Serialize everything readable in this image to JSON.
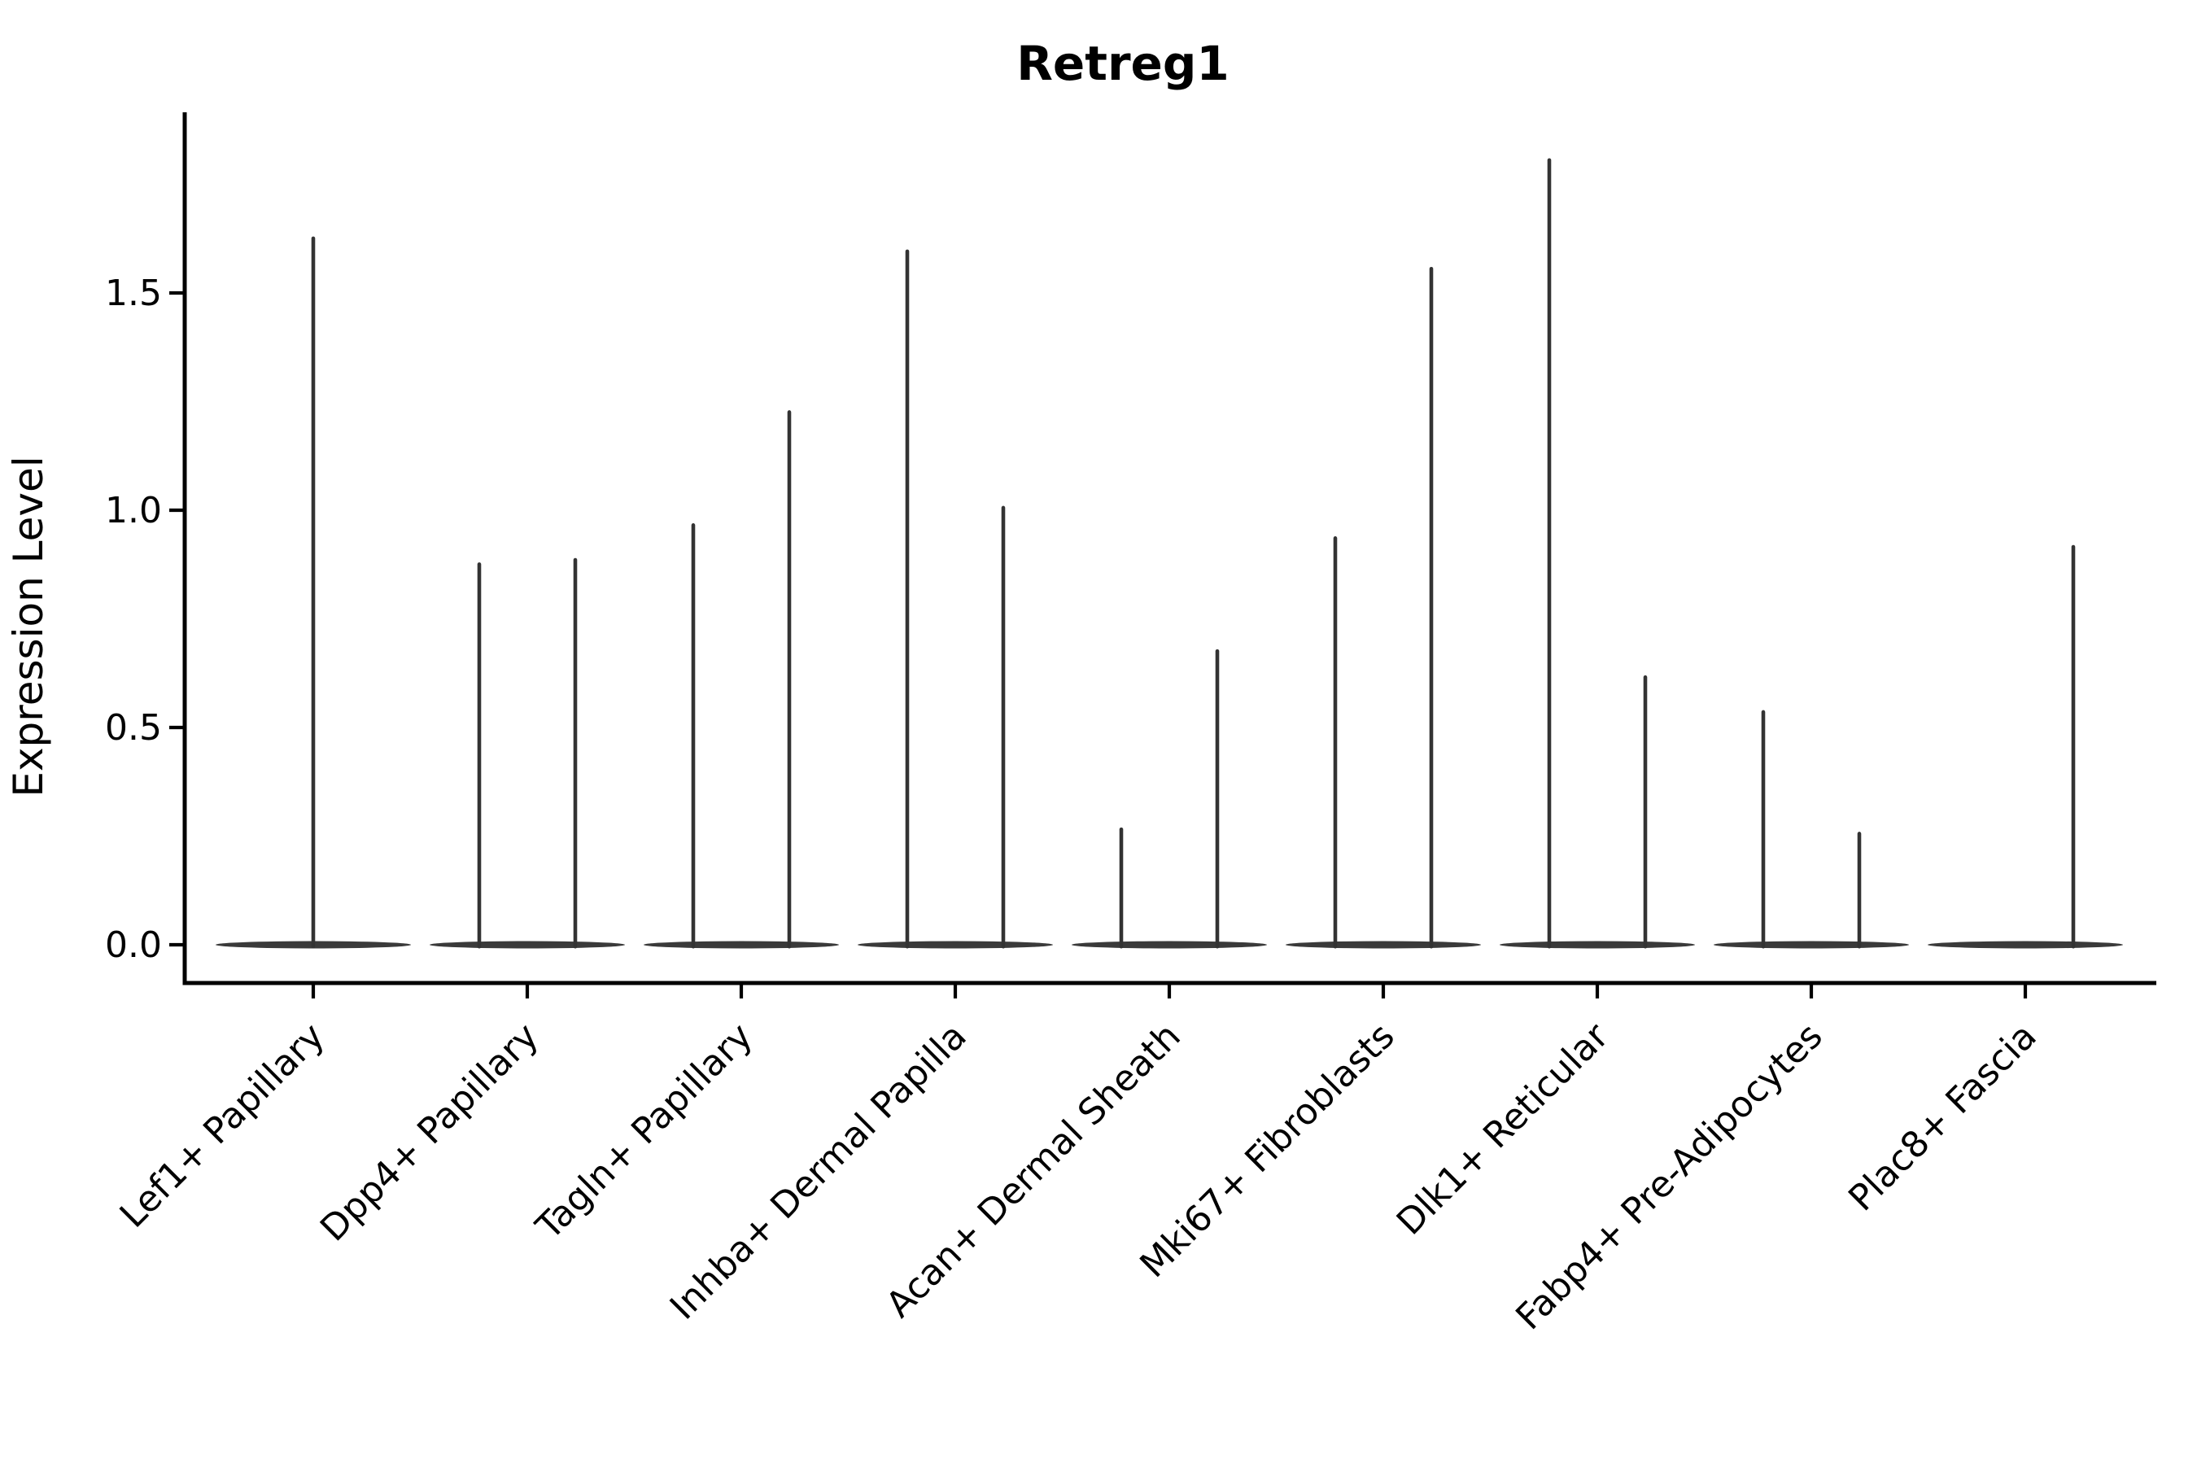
{
  "figure": {
    "background": "#ffffff"
  },
  "chart_data": {
    "type": "violin",
    "title": "Retreg1",
    "ylabel": "Expression Level",
    "xlabel": "",
    "grid": false,
    "legend": "none",
    "yticks": [
      "0.0",
      "0.5",
      "1.0",
      "1.5"
    ],
    "ytick_values": [
      0.0,
      0.5,
      1.0,
      1.5
    ],
    "ylim": [
      -0.09,
      1.92
    ],
    "baseline_value": 0.0,
    "categories": [
      "Lef1+ Papillary",
      "Dpp4+ Papillary",
      "Tagln+ Papillary",
      "Inhba+ Dermal Papilla",
      "Acan+ Dermal Sheath",
      "Mki67+ Fibroblasts",
      "Dlk1+ Reticular",
      "Fabp4+ Pre-Adipocytes",
      "Plac8+ Fascia"
    ],
    "violins": [
      {
        "category": "Lef1+ Papillary",
        "peaks": [
          {
            "pos": "center",
            "peak": 1.63
          }
        ]
      },
      {
        "category": "Dpp4+ Papillary",
        "peaks": [
          {
            "pos": "left",
            "peak": 0.88
          },
          {
            "pos": "right",
            "peak": 0.89
          }
        ]
      },
      {
        "category": "Tagln+ Papillary",
        "peaks": [
          {
            "pos": "left",
            "peak": 0.97
          },
          {
            "pos": "right",
            "peak": 1.23
          }
        ]
      },
      {
        "category": "Inhba+ Dermal Papilla",
        "peaks": [
          {
            "pos": "left",
            "peak": 1.6
          },
          {
            "pos": "right",
            "peak": 1.01
          }
        ]
      },
      {
        "category": "Acan+ Dermal Sheath",
        "peaks": [
          {
            "pos": "left",
            "peak": 0.27
          },
          {
            "pos": "right",
            "peak": 0.68
          }
        ]
      },
      {
        "category": "Mki67+ Fibroblasts",
        "peaks": [
          {
            "pos": "left",
            "peak": 0.94
          },
          {
            "pos": "right",
            "peak": 1.56
          }
        ]
      },
      {
        "category": "Dlk1+ Reticular",
        "peaks": [
          {
            "pos": "left",
            "peak": 1.81
          },
          {
            "pos": "right",
            "peak": 0.62
          }
        ]
      },
      {
        "category": "Fabp4+ Pre-Adipocytes",
        "peaks": [
          {
            "pos": "left",
            "peak": 0.54
          },
          {
            "pos": "right",
            "peak": 0.26
          }
        ]
      },
      {
        "category": "Plac8+ Fascia",
        "peaks": [
          {
            "pos": "right",
            "peak": 0.92
          }
        ]
      }
    ],
    "colors": {
      "violin": "#333333",
      "violin_base": "#3a3a3a",
      "axis": "#000000",
      "text": "#000000",
      "background": "#ffffff"
    }
  }
}
